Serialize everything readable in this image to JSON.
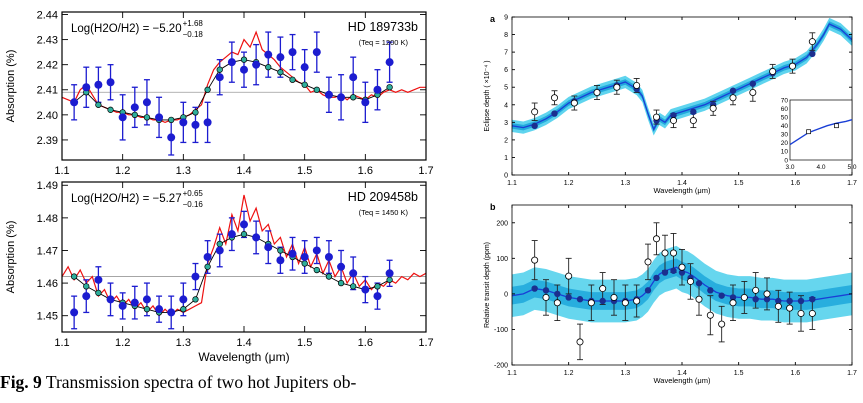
{
  "caption": {
    "label": "Fig. 9",
    "text": "Transmission spectra of two hot Jupiters ob-"
  },
  "chart_data": [
    {
      "type": "scatter",
      "panel": "left-top",
      "annotation_model": "Log(H2O/H2) = −5.20",
      "annotation_sup": "+1.68",
      "annotation_sub": "−0.18",
      "planet": "HD  189733b",
      "teq": "(Teq = 1200 K)",
      "ylabel": "Absorption (%)",
      "xlabel": "",
      "xlim": [
        1.1,
        1.7
      ],
      "ylim": [
        2.382,
        2.441
      ],
      "xticks": [
        1.1,
        1.2,
        1.3,
        1.4,
        1.5,
        1.6,
        1.7
      ],
      "yticks": [
        2.39,
        2.4,
        2.41,
        2.42,
        2.43,
        2.44
      ],
      "reference_line": 2.409,
      "data": {
        "x": [
          1.12,
          1.14,
          1.16,
          1.18,
          1.2,
          1.22,
          1.24,
          1.26,
          1.28,
          1.3,
          1.32,
          1.34,
          1.36,
          1.38,
          1.4,
          1.42,
          1.44,
          1.46,
          1.48,
          1.5,
          1.52,
          1.54,
          1.56,
          1.58,
          1.6,
          1.62,
          1.64
        ],
        "y": [
          2.405,
          2.411,
          2.412,
          2.413,
          2.399,
          2.403,
          2.405,
          2.399,
          2.391,
          2.397,
          2.396,
          2.397,
          2.415,
          2.421,
          2.418,
          2.42,
          2.424,
          2.423,
          2.425,
          2.419,
          2.425,
          2.408,
          2.407,
          2.415,
          2.405,
          2.41,
          2.421
        ],
        "err": [
          0.007,
          0.008,
          0.007,
          0.007,
          0.009,
          0.008,
          0.009,
          0.008,
          0.007,
          0.008,
          0.007,
          0.008,
          0.007,
          0.008,
          0.007,
          0.008,
          0.009,
          0.008,
          0.007,
          0.007,
          0.008,
          0.007,
          0.009,
          0.008,
          0.008,
          0.008,
          0.008
        ]
      },
      "model_binned": {
        "x": [
          1.12,
          1.14,
          1.16,
          1.18,
          1.2,
          1.22,
          1.24,
          1.26,
          1.28,
          1.3,
          1.32,
          1.34,
          1.36,
          1.38,
          1.4,
          1.42,
          1.44,
          1.46,
          1.48,
          1.5,
          1.52,
          1.54,
          1.56,
          1.58,
          1.6,
          1.62,
          1.64
        ],
        "y": [
          2.405,
          2.409,
          2.404,
          2.402,
          2.401,
          2.4,
          2.399,
          2.398,
          2.398,
          2.399,
          2.401,
          2.41,
          2.418,
          2.421,
          2.422,
          2.421,
          2.419,
          2.417,
          2.414,
          2.412,
          2.41,
          2.408,
          2.407,
          2.407,
          2.406,
          2.408,
          2.411
        ]
      },
      "model_line": {
        "x": [
          1.1,
          1.11,
          1.12,
          1.13,
          1.14,
          1.15,
          1.16,
          1.17,
          1.18,
          1.19,
          1.2,
          1.21,
          1.22,
          1.23,
          1.24,
          1.25,
          1.26,
          1.27,
          1.28,
          1.29,
          1.3,
          1.31,
          1.32,
          1.33,
          1.34,
          1.35,
          1.36,
          1.37,
          1.38,
          1.39,
          1.4,
          1.41,
          1.42,
          1.43,
          1.44,
          1.45,
          1.46,
          1.47,
          1.48,
          1.49,
          1.5,
          1.51,
          1.52,
          1.53,
          1.54,
          1.55,
          1.56,
          1.57,
          1.58,
          1.59,
          1.6,
          1.61,
          1.62,
          1.63,
          1.64,
          1.65,
          1.66,
          1.67,
          1.68,
          1.69,
          1.7
        ],
        "y": [
          2.407,
          2.406,
          2.405,
          2.41,
          2.412,
          2.408,
          2.404,
          2.403,
          2.402,
          2.401,
          2.401,
          2.4,
          2.4,
          2.399,
          2.399,
          2.398,
          2.398,
          2.397,
          2.398,
          2.398,
          2.399,
          2.4,
          2.402,
          2.404,
          2.412,
          2.418,
          2.421,
          2.423,
          2.425,
          2.424,
          2.43,
          2.427,
          2.433,
          2.426,
          2.424,
          2.422,
          2.419,
          2.417,
          2.415,
          2.413,
          2.412,
          2.409,
          2.41,
          2.408,
          2.407,
          2.407,
          2.408,
          2.406,
          2.408,
          2.407,
          2.406,
          2.408,
          2.407,
          2.409,
          2.41,
          2.409,
          2.41,
          2.409,
          2.41,
          2.411,
          2.411
        ]
      },
      "colors": {
        "data": "#1c1cd0",
        "model_line": "#ee1111",
        "model_binned": "#2fae9b",
        "reference": "#9a9a9a"
      }
    },
    {
      "type": "scatter",
      "panel": "left-bottom",
      "annotation_model": "Log(H2O/H2) = −5.27",
      "annotation_sup": "+0.65",
      "annotation_sub": "−0.16",
      "planet": "HD  209458b",
      "teq": "(Teq = 1450 K)",
      "ylabel": "Absorption (%)",
      "xlabel": "Wavelength (μm)",
      "xlim": [
        1.1,
        1.7
      ],
      "ylim": [
        1.445,
        1.491
      ],
      "xticks": [
        1.1,
        1.2,
        1.3,
        1.4,
        1.5,
        1.6,
        1.7
      ],
      "yticks": [
        1.45,
        1.46,
        1.47,
        1.48,
        1.49
      ],
      "reference_line": 1.462,
      "data": {
        "x": [
          1.12,
          1.14,
          1.16,
          1.18,
          1.2,
          1.22,
          1.24,
          1.26,
          1.28,
          1.3,
          1.32,
          1.34,
          1.36,
          1.38,
          1.4,
          1.42,
          1.44,
          1.46,
          1.48,
          1.5,
          1.52,
          1.54,
          1.56,
          1.58,
          1.6,
          1.62,
          1.64
        ],
        "y": [
          1.451,
          1.456,
          1.461,
          1.455,
          1.453,
          1.454,
          1.455,
          1.452,
          1.451,
          1.455,
          1.462,
          1.468,
          1.47,
          1.475,
          1.478,
          1.474,
          1.471,
          1.467,
          1.469,
          1.468,
          1.47,
          1.468,
          1.465,
          1.463,
          1.458,
          1.456,
          1.463
        ],
        "err": [
          0.005,
          0.005,
          0.004,
          0.005,
          0.004,
          0.005,
          0.005,
          0.004,
          0.005,
          0.005,
          0.004,
          0.005,
          0.005,
          0.005,
          0.004,
          0.005,
          0.005,
          0.004,
          0.005,
          0.005,
          0.004,
          0.005,
          0.005,
          0.005,
          0.004,
          0.004,
          0.004
        ]
      },
      "model_binned": {
        "x": [
          1.12,
          1.14,
          1.16,
          1.18,
          1.2,
          1.22,
          1.24,
          1.26,
          1.28,
          1.3,
          1.32,
          1.34,
          1.36,
          1.38,
          1.4,
          1.42,
          1.44,
          1.46,
          1.48,
          1.5,
          1.52,
          1.54,
          1.56,
          1.58,
          1.6,
          1.62,
          1.64
        ],
        "y": [
          1.462,
          1.459,
          1.457,
          1.455,
          1.454,
          1.453,
          1.452,
          1.451,
          1.451,
          1.452,
          1.455,
          1.465,
          1.472,
          1.474,
          1.475,
          1.474,
          1.472,
          1.47,
          1.468,
          1.466,
          1.464,
          1.462,
          1.46,
          1.459,
          1.458,
          1.459,
          1.461
        ]
      },
      "model_line": {
        "x": [
          1.1,
          1.11,
          1.12,
          1.13,
          1.14,
          1.15,
          1.16,
          1.17,
          1.18,
          1.19,
          1.2,
          1.21,
          1.22,
          1.23,
          1.24,
          1.25,
          1.26,
          1.27,
          1.28,
          1.29,
          1.3,
          1.31,
          1.32,
          1.33,
          1.34,
          1.35,
          1.36,
          1.37,
          1.38,
          1.39,
          1.4,
          1.41,
          1.42,
          1.43,
          1.44,
          1.45,
          1.46,
          1.47,
          1.48,
          1.49,
          1.5,
          1.51,
          1.52,
          1.53,
          1.54,
          1.55,
          1.56,
          1.57,
          1.58,
          1.59,
          1.6,
          1.61,
          1.62,
          1.63,
          1.64,
          1.65,
          1.66,
          1.67,
          1.68,
          1.69,
          1.7
        ],
        "y": [
          1.462,
          1.465,
          1.461,
          1.464,
          1.46,
          1.462,
          1.456,
          1.458,
          1.454,
          1.456,
          1.453,
          1.455,
          1.452,
          1.454,
          1.451,
          1.453,
          1.45,
          1.452,
          1.45,
          1.452,
          1.451,
          1.452,
          1.453,
          1.454,
          1.466,
          1.471,
          1.477,
          1.472,
          1.481,
          1.476,
          1.487,
          1.479,
          1.483,
          1.476,
          1.478,
          1.472,
          1.474,
          1.468,
          1.472,
          1.466,
          1.471,
          1.465,
          1.469,
          1.463,
          1.467,
          1.462,
          1.465,
          1.46,
          1.463,
          1.459,
          1.461,
          1.458,
          1.46,
          1.459,
          1.461,
          1.46,
          1.462,
          1.461,
          1.463,
          1.462,
          1.463
        ]
      },
      "colors": {
        "data": "#1c1cd0",
        "model_line": "#ee1111",
        "model_binned": "#2fae9b",
        "reference": "#9a9a9a"
      }
    },
    {
      "type": "line",
      "panel": "right-top",
      "panel_label": "a",
      "ylabel": "Eclipse depth ( ×10⁻⁴ )",
      "xlabel": "Wavelength (μm)",
      "xlim": [
        1.1,
        1.7
      ],
      "ylim": [
        0,
        9
      ],
      "xticks": [
        1.1,
        1.2,
        1.3,
        1.4,
        1.5,
        1.6,
        1.7
      ],
      "yticks": [
        0,
        1,
        2,
        3,
        4,
        5,
        6,
        7,
        8,
        9
      ],
      "data": {
        "x": [
          1.14,
          1.175,
          1.21,
          1.25,
          1.285,
          1.32,
          1.355,
          1.385,
          1.42,
          1.455,
          1.49,
          1.525,
          1.56,
          1.595,
          1.63
        ],
        "y": [
          3.6,
          4.4,
          4.1,
          4.7,
          5.0,
          5.1,
          3.3,
          3.1,
          3.1,
          3.8,
          4.4,
          4.7,
          5.9,
          6.2,
          7.6
        ],
        "err": [
          0.5,
          0.4,
          0.4,
          0.4,
          0.4,
          0.4,
          0.4,
          0.4,
          0.4,
          0.4,
          0.4,
          0.5,
          0.4,
          0.4,
          0.5
        ]
      },
      "model_binned": {
        "x": [
          1.14,
          1.175,
          1.21,
          1.25,
          1.285,
          1.32,
          1.355,
          1.385,
          1.42,
          1.455,
          1.49,
          1.525,
          1.56,
          1.595,
          1.63
        ],
        "y": [
          2.8,
          3.5,
          4.2,
          4.7,
          5.1,
          4.9,
          3.1,
          3.4,
          3.6,
          4.0,
          4.8,
          5.2,
          5.8,
          6.2,
          6.9
        ]
      },
      "model_line": {
        "x": [
          1.1,
          1.12,
          1.14,
          1.16,
          1.18,
          1.2,
          1.22,
          1.24,
          1.26,
          1.28,
          1.3,
          1.31,
          1.32,
          1.33,
          1.34,
          1.35,
          1.36,
          1.37,
          1.38,
          1.4,
          1.42,
          1.44,
          1.46,
          1.48,
          1.5,
          1.52,
          1.54,
          1.56,
          1.58,
          1.6,
          1.62,
          1.64,
          1.65,
          1.66,
          1.68,
          1.7
        ],
        "y": [
          2.8,
          2.7,
          2.9,
          3.2,
          3.6,
          4.1,
          4.4,
          4.7,
          4.9,
          5.1,
          5.3,
          5.1,
          4.9,
          4.5,
          3.5,
          2.6,
          3.2,
          3.0,
          3.4,
          3.6,
          3.8,
          4.0,
          4.3,
          4.6,
          4.9,
          5.2,
          5.5,
          5.8,
          6.1,
          6.3,
          6.7,
          7.5,
          8.0,
          8.6,
          8.3,
          7.7
        ]
      },
      "band_halfwidth": 0.35,
      "inset": {
        "xlim": [
          3.0,
          5.0
        ],
        "ylim": [
          0,
          70
        ],
        "xticks": [
          3.0,
          4.0,
          5.0
        ],
        "yticks": [
          0,
          10,
          20,
          30,
          40,
          50,
          60,
          70
        ],
        "model_x": [
          3.0,
          3.3,
          3.6,
          3.9,
          4.2,
          4.5,
          4.8,
          5.0
        ],
        "model_y": [
          18,
          25,
          32,
          36,
          40,
          43,
          45,
          47
        ],
        "data_x": [
          3.6,
          4.5
        ],
        "data_y": [
          33,
          40
        ]
      },
      "colors": {
        "line": "#1a3fd6",
        "band_outer": "#5fd4ee",
        "band_inner": "#22a8dc",
        "binned": "#1b2f8f",
        "points": "#ffffff"
      }
    },
    {
      "type": "line",
      "panel": "right-bottom",
      "panel_label": "b",
      "ylabel": "Relative transit depth (ppm)",
      "xlabel": "Wavelength (μm)",
      "xlim": [
        1.1,
        1.7
      ],
      "ylim": [
        -200,
        250
      ],
      "xticks": [
        1.1,
        1.2,
        1.3,
        1.4,
        1.5,
        1.6,
        1.7
      ],
      "yticks": [
        -200,
        -100,
        0,
        100,
        200
      ],
      "data": {
        "x": [
          1.14,
          1.16,
          1.18,
          1.2,
          1.22,
          1.24,
          1.26,
          1.28,
          1.3,
          1.32,
          1.34,
          1.355,
          1.37,
          1.385,
          1.4,
          1.415,
          1.43,
          1.45,
          1.47,
          1.49,
          1.51,
          1.53,
          1.55,
          1.57,
          1.59,
          1.61,
          1.63
        ],
        "y": [
          95,
          -10,
          -25,
          50,
          -135,
          -25,
          15,
          -10,
          -25,
          -20,
          90,
          155,
          115,
          115,
          75,
          35,
          -15,
          -60,
          -85,
          -25,
          -10,
          10,
          0,
          -35,
          -40,
          -55,
          -55
        ],
        "err": [
          55,
          50,
          50,
          50,
          50,
          50,
          45,
          50,
          50,
          45,
          50,
          45,
          50,
          55,
          50,
          50,
          45,
          55,
          50,
          50,
          45,
          50,
          45,
          45,
          45,
          50,
          45
        ]
      },
      "model_binned": {
        "x": [
          1.14,
          1.16,
          1.18,
          1.2,
          1.22,
          1.24,
          1.26,
          1.28,
          1.3,
          1.32,
          1.34,
          1.355,
          1.37,
          1.385,
          1.4,
          1.415,
          1.43,
          1.45,
          1.47,
          1.49,
          1.51,
          1.53,
          1.55,
          1.57,
          1.59,
          1.61,
          1.63
        ],
        "y": [
          15,
          10,
          0,
          -10,
          -15,
          -20,
          -20,
          -20,
          -20,
          -15,
          10,
          45,
          60,
          65,
          60,
          45,
          30,
          10,
          -5,
          -10,
          -10,
          -15,
          -15,
          -20,
          -20,
          -20,
          -15
        ]
      },
      "model_line": {
        "x": [
          1.1,
          1.12,
          1.14,
          1.16,
          1.18,
          1.2,
          1.22,
          1.24,
          1.26,
          1.28,
          1.3,
          1.32,
          1.33,
          1.34,
          1.35,
          1.36,
          1.37,
          1.38,
          1.39,
          1.4,
          1.41,
          1.42,
          1.44,
          1.46,
          1.48,
          1.5,
          1.52,
          1.54,
          1.56,
          1.58,
          1.6,
          1.62,
          1.64,
          1.66,
          1.68,
          1.7
        ],
        "y": [
          -5,
          0,
          15,
          10,
          0,
          -10,
          -15,
          -20,
          -20,
          -20,
          -20,
          -15,
          -5,
          10,
          35,
          55,
          65,
          70,
          75,
          65,
          60,
          50,
          25,
          5,
          -5,
          -10,
          -10,
          -15,
          -15,
          -20,
          -20,
          -20,
          -15,
          -10,
          -5,
          0
        ]
      },
      "band_outer": 60,
      "band_inner": 25,
      "colors": {
        "line": "#1a3fd6",
        "band_outer": "#66d6ee",
        "band_inner": "#28aede",
        "binned": "#1b2f8f",
        "points": "#ffffff"
      }
    }
  ]
}
